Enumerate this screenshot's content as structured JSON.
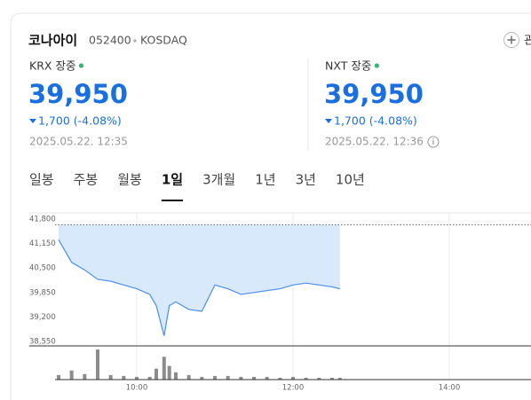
{
  "header": {
    "name": "코나아이",
    "code": "052400",
    "market": "KOSDAQ",
    "button": "관"
  },
  "quotes": [
    {
      "exchange": "KRX",
      "status": "장중",
      "price": "39,950",
      "change": "1,700",
      "change_rate": "(-4.08%)",
      "time": "2025.05.22. 12:35"
    },
    {
      "exchange": "NXT",
      "status": "장중",
      "price": "39,950",
      "change": "1,700",
      "change_rate": "(-4.08%)",
      "time": "2025.05.22. 12:36"
    }
  ],
  "tabs": [
    "일봉",
    "주봉",
    "월봉",
    "1일",
    "3개월",
    "1년",
    "3년",
    "10년"
  ],
  "selected_tab": 3,
  "chart_data": {
    "type": "area",
    "x": [
      "09:00",
      "09:10",
      "09:20",
      "09:30",
      "09:40",
      "09:50",
      "10:00",
      "10:10",
      "10:15",
      "10:21",
      "10:25",
      "10:30",
      "10:40",
      "10:50",
      "11:00",
      "11:10",
      "11:20",
      "11:30",
      "11:40",
      "11:50",
      "12:00",
      "12:10",
      "12:20",
      "12:30",
      "12:36"
    ],
    "series": [
      {
        "values": [
          41250,
          40650,
          40450,
          40200,
          40150,
          40050,
          39950,
          39800,
          39500,
          38700,
          39500,
          39600,
          39400,
          39350,
          40050,
          39950,
          39800,
          39850,
          39900,
          39950,
          40050,
          40100,
          40050,
          40000,
          39950
        ],
        "color": "#4a8ee8",
        "fill": "#d9e9fc"
      },
      {
        "values": [
          5,
          10,
          6,
          33,
          5,
          4,
          3,
          3,
          12,
          25,
          15,
          8,
          5,
          3,
          4,
          4,
          3,
          3,
          3,
          2,
          3,
          2,
          2,
          2,
          2
        ],
        "color": "#8c8c8c",
        "axis": "y2"
      }
    ],
    "reference_line": 41650,
    "xlim": [
      "09:00",
      "15:30"
    ],
    "xticks": [
      "10:00",
      "12:00",
      "14:00"
    ],
    "ylim": [
      38550,
      41800
    ],
    "yticks": [
      {
        "value": 41800,
        "label": "41,800"
      },
      {
        "value": 41150,
        "label": "41,150"
      },
      {
        "value": 40500,
        "label": "40,500"
      },
      {
        "value": 39850,
        "label": "39,850"
      },
      {
        "value": 39200,
        "label": "39,200"
      },
      {
        "value": 38550,
        "label": "38,550"
      }
    ],
    "y2lim": [
      0,
      35
    ],
    "grid": true
  }
}
